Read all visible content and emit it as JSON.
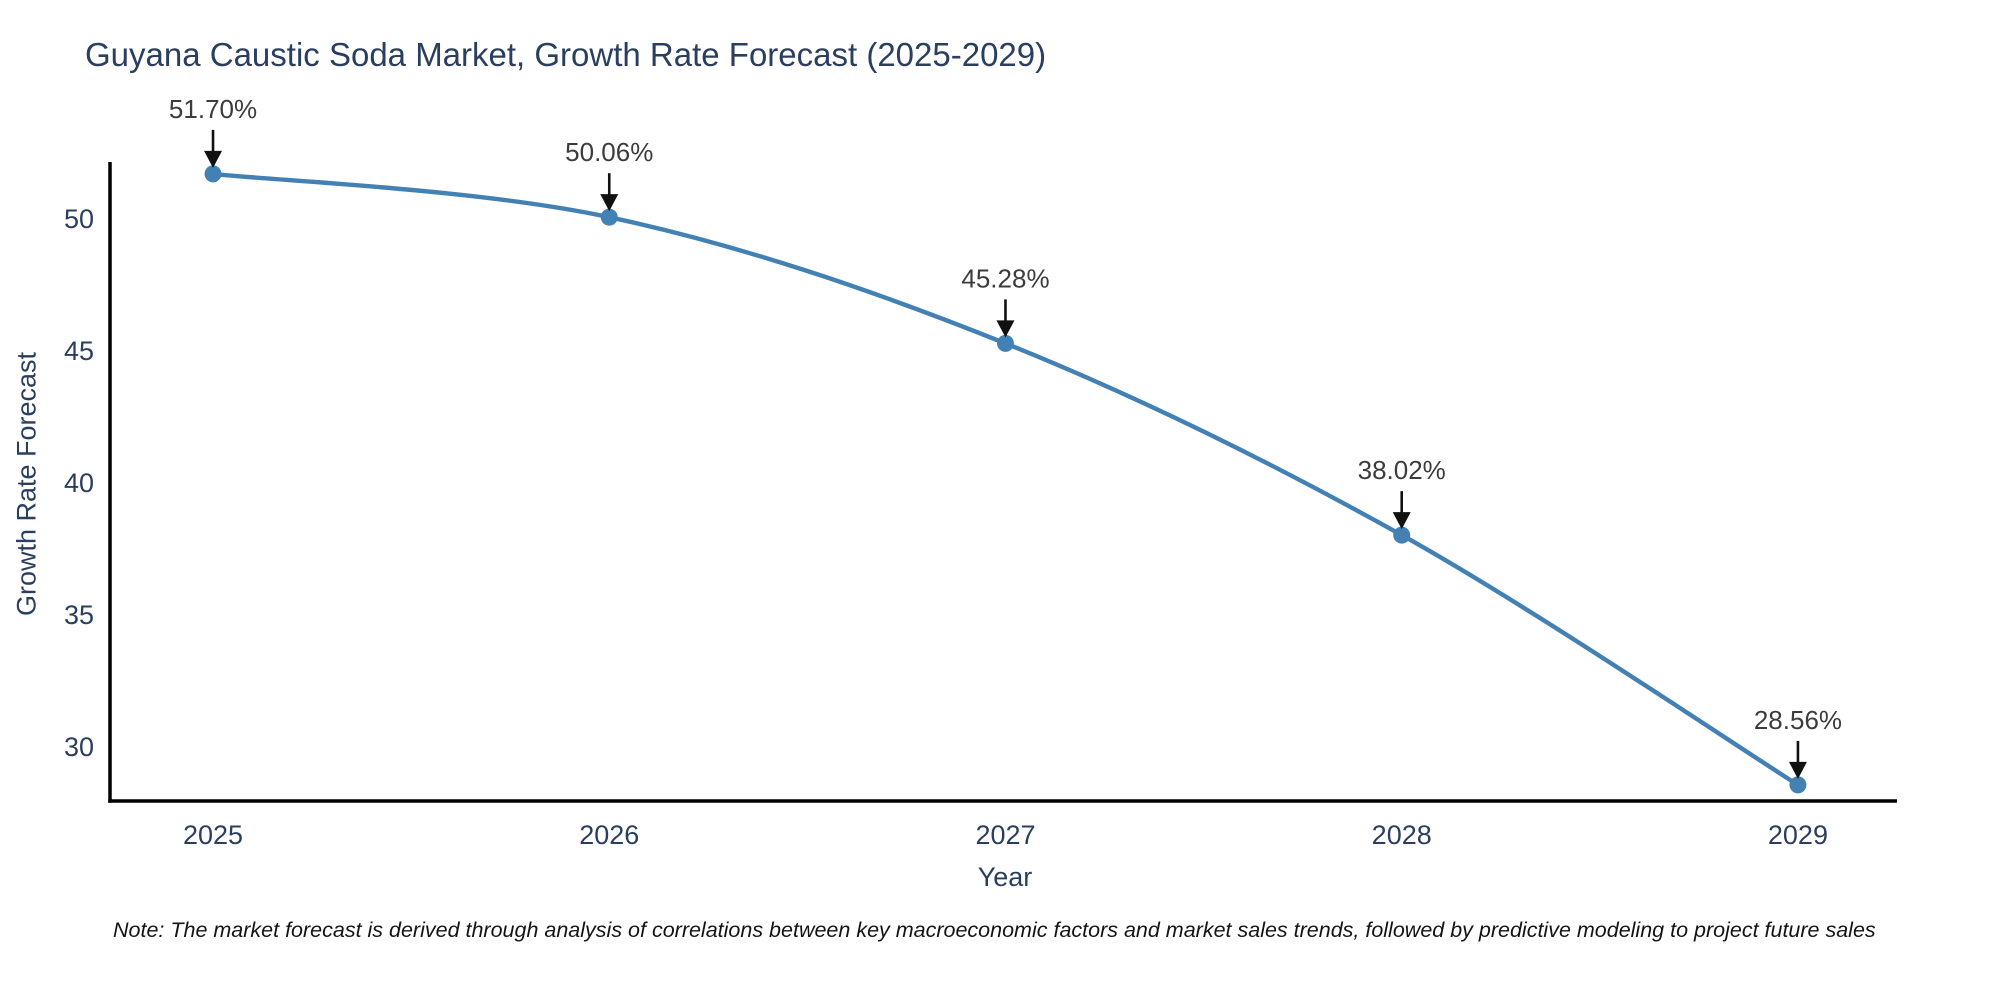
{
  "title": "Guyana Caustic Soda Market, Growth Rate Forecast (2025-2029)",
  "note": "Note: The market forecast is derived through analysis of correlations between key macroeconomic factors and market sales trends, followed by predictive modeling to project future sales",
  "colors": {
    "background": "#ffffff",
    "line": "#4381b5",
    "marker": "#4381b5",
    "heading": "#2a3f5f",
    "tick_label": "#2a3f5f",
    "annotation_text": "#3c3c3c",
    "arrow": "#111111",
    "axis": "#000000",
    "note": "#141414"
  },
  "chart_data": {
    "type": "line",
    "title": "Guyana Caustic Soda Market, Growth Rate Forecast (2025-2029)",
    "xlabel": "Year",
    "ylabel": "Growth Rate Forecast",
    "x": [
      2025,
      2026,
      2027,
      2028,
      2029
    ],
    "series": [
      {
        "name": "Growth Rate Forecast",
        "values": [
          51.7,
          50.06,
          45.28,
          38.02,
          28.56
        ]
      }
    ],
    "point_labels": [
      "51.70%",
      "50.06%",
      "45.28%",
      "38.02%",
      "28.56%"
    ],
    "xticks": [
      "2025",
      "2026",
      "2027",
      "2028",
      "2029"
    ],
    "yticks": [
      30,
      35,
      40,
      45,
      50
    ],
    "xlim": [
      2024.74,
      2029.25
    ],
    "ylim": [
      27.95,
      52.15
    ],
    "grid": false,
    "legend_position": "none",
    "line_shape": "spline",
    "annotation_style": "value label above point with downward black arrow"
  }
}
